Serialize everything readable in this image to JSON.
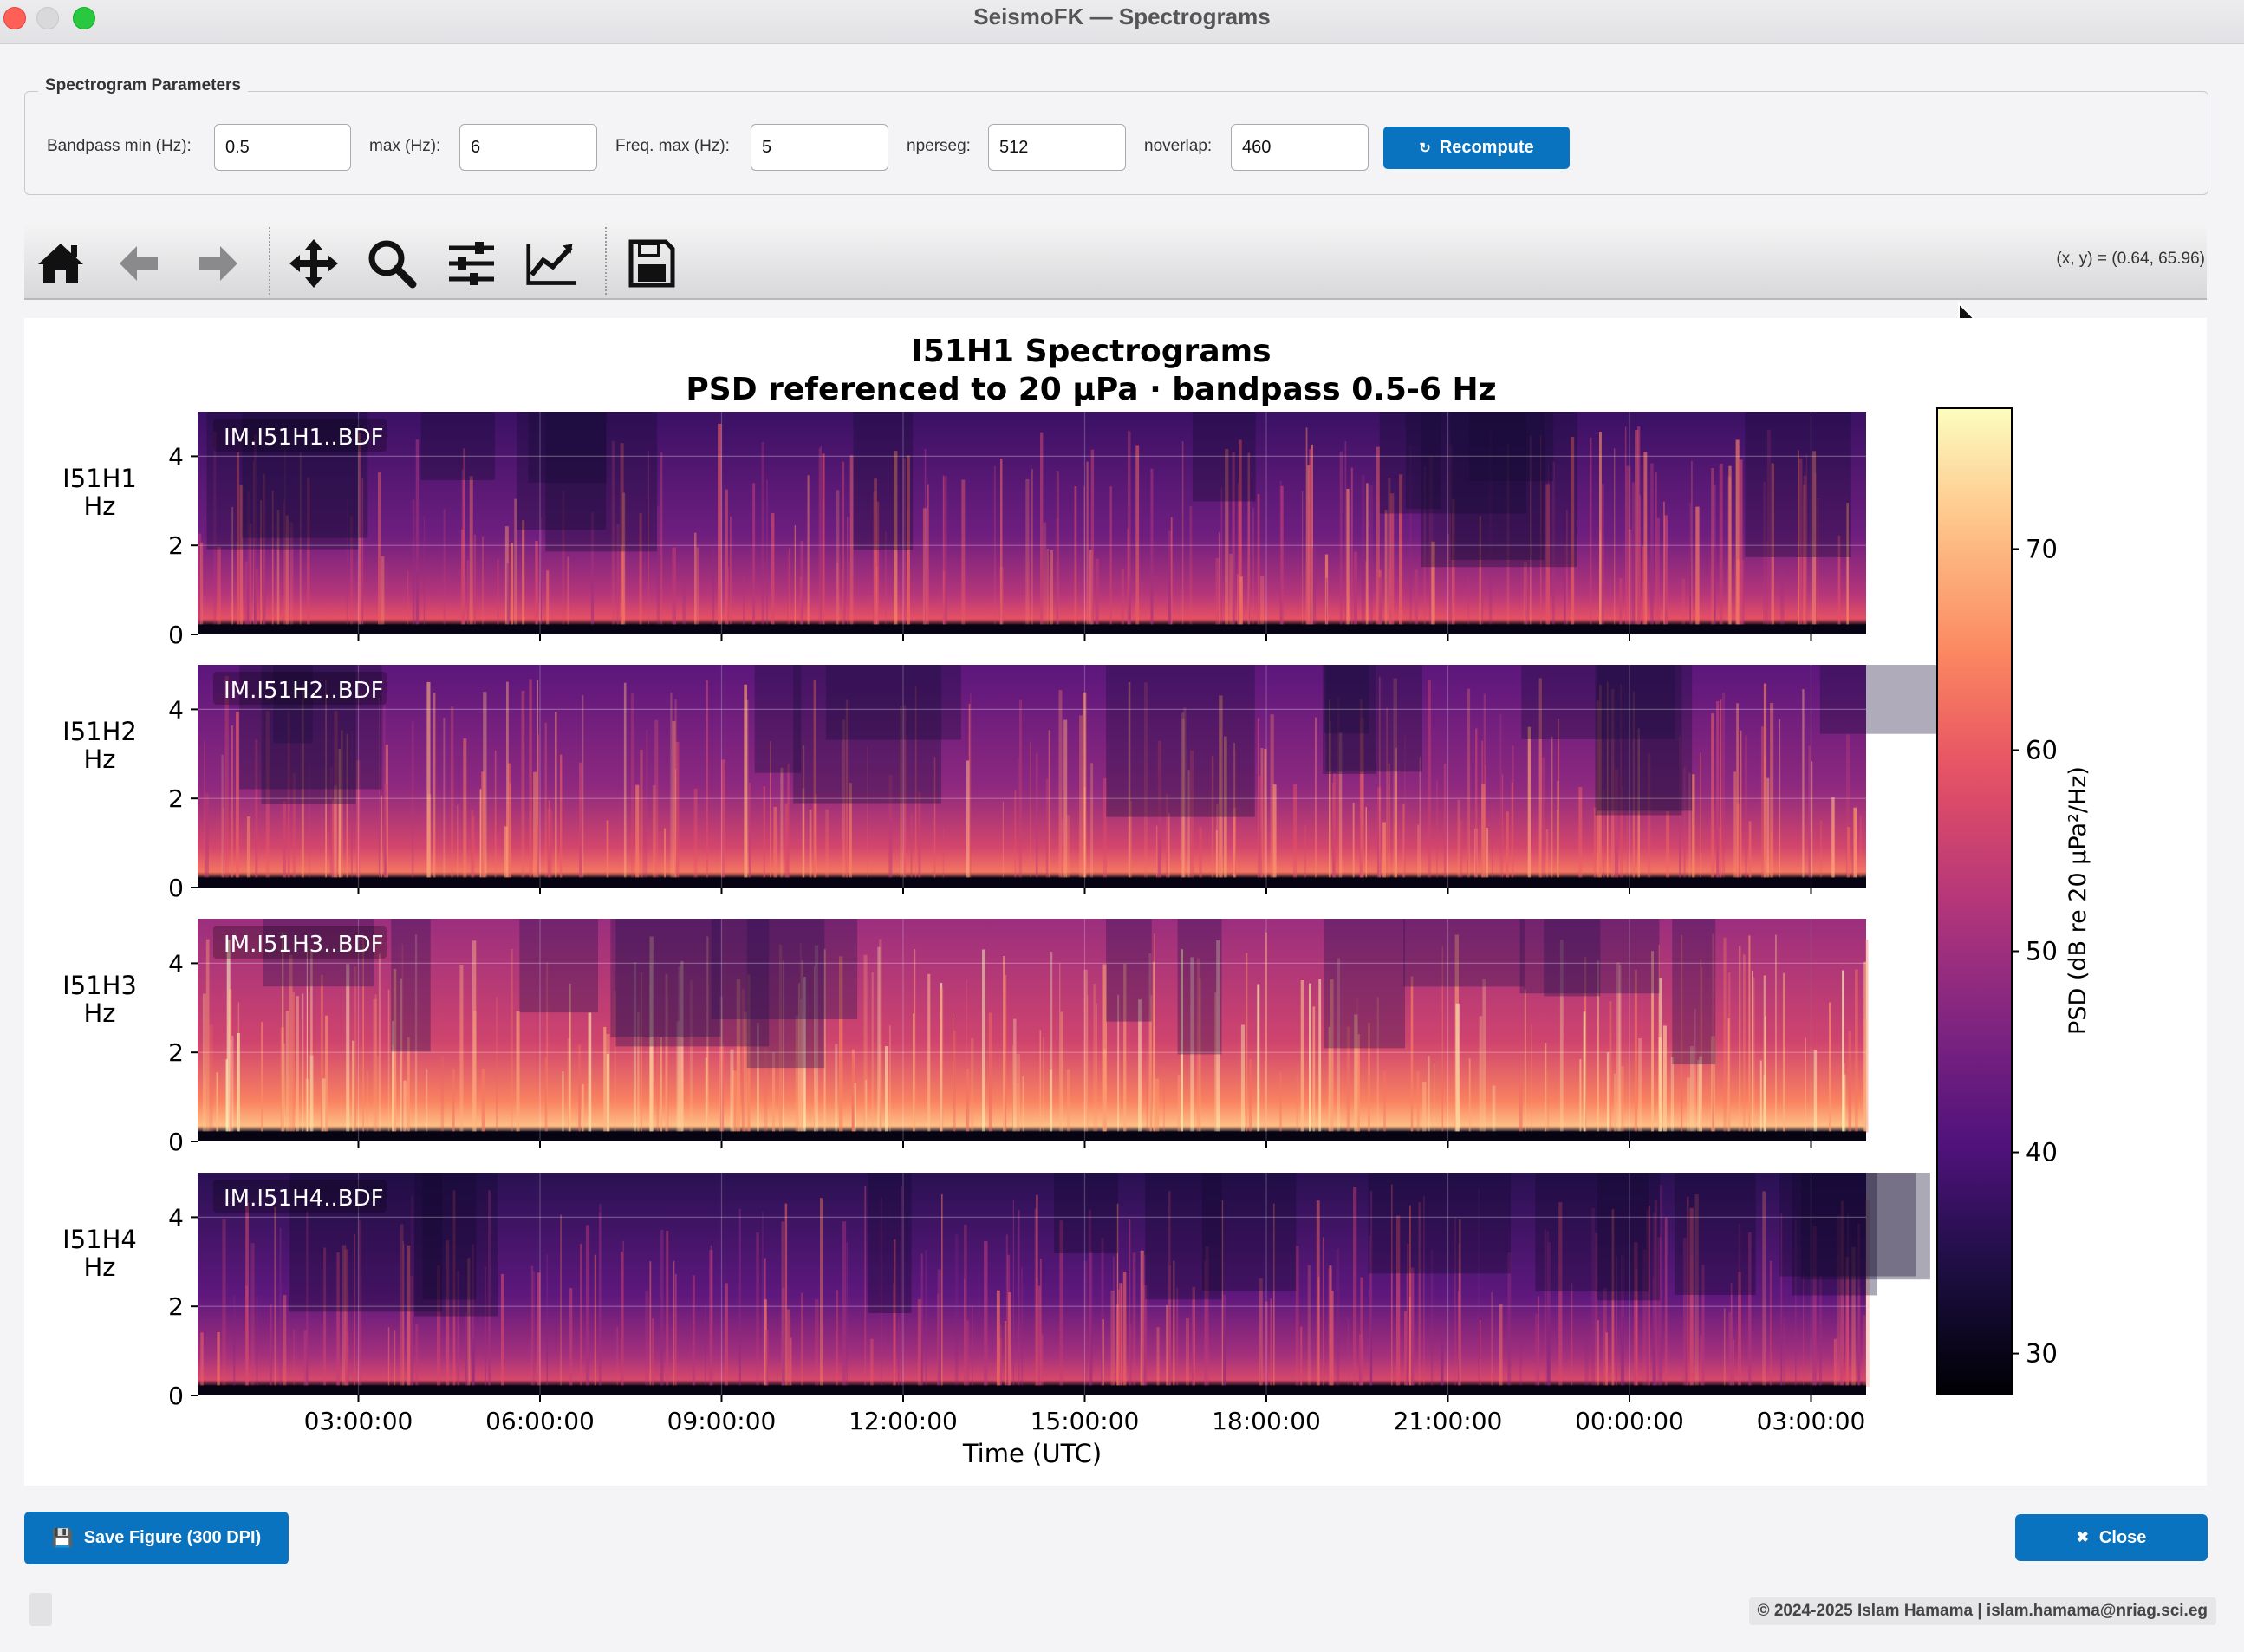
{
  "window": {
    "title": "SeismoFK — Spectrograms"
  },
  "params": {
    "group_title": "Spectrogram Parameters",
    "bandpass_min_label": "Bandpass min (Hz):",
    "bandpass_min_value": "0.5",
    "max_label": "max (Hz):",
    "max_value": "6",
    "freq_max_label": "Freq. max (Hz):",
    "freq_max_value": "5",
    "nperseg_label": "nperseg:",
    "nperseg_value": "512",
    "noverlap_label": "noverlap:",
    "noverlap_value": "460",
    "recompute_icon": "↻",
    "recompute_label": "Recompute"
  },
  "toolbar": {
    "icons": [
      "home-icon",
      "back-arrow-icon",
      "forward-arrow-icon",
      "pan-move-icon",
      "zoom-icon",
      "subplots-configure-icon",
      "axes-edit-icon",
      "save-icon"
    ],
    "coords": "(x, y) = (0.64, 65.96)"
  },
  "figure": {
    "title_line1": "I51H1 Spectrograms",
    "title_line2": "PSD referenced to 20 μPa  ·  bandpass 0.5-6 Hz"
  },
  "chart_data": {
    "type": "heatmap",
    "colormap": "magma",
    "xlabel": "Time (UTC)",
    "x_ticks": [
      "03:00:00",
      "06:00:00",
      "09:00:00",
      "12:00:00",
      "15:00:00",
      "18:00:00",
      "21:00:00",
      "00:00:00",
      "03:00:00"
    ],
    "y_ticks": [
      "0",
      "2",
      "4"
    ],
    "ylim": [
      0,
      5
    ],
    "grid": true,
    "colorbar": {
      "label": "PSD (dB re 20 μPa²/Hz)",
      "ticks": [
        "30",
        "40",
        "50",
        "60",
        "70"
      ],
      "range": [
        28,
        77
      ]
    },
    "panels": [
      {
        "ylabel_top": "I51H1",
        "ylabel_bottom": "Hz",
        "channel": "IM.I51H1..BDF"
      },
      {
        "ylabel_top": "I51H2",
        "ylabel_bottom": "Hz",
        "channel": "IM.I51H2..BDF"
      },
      {
        "ylabel_top": "I51H3",
        "ylabel_bottom": "Hz",
        "channel": "IM.I51H3..BDF"
      },
      {
        "ylabel_top": "I51H4",
        "ylabel_bottom": "Hz",
        "channel": "IM.I51H4..BDF"
      }
    ]
  },
  "bottom": {
    "save_icon": "💾",
    "save_label": "Save Figure (300 DPI)",
    "close_icon": "✖",
    "close_label": "Close",
    "copyright": "© 2024-2025 Islam Hamama  |  islam.hamama@nriag.sci.eg"
  },
  "colors": {
    "accent": "#0a73c0",
    "panel_bg": "#ffffff",
    "window_bg": "#f4f4f6"
  }
}
